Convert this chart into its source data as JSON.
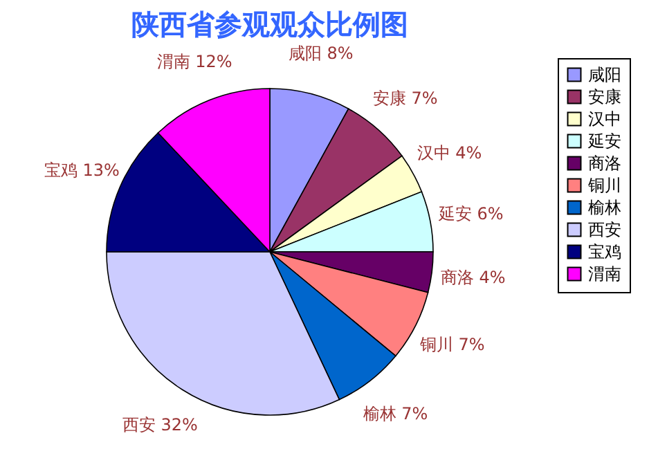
{
  "chart_data": {
    "type": "pie",
    "title": "陕西省参观观众比例图",
    "categories": [
      "咸阳",
      "安康",
      "汉中",
      "延安",
      "商洛",
      "铜川",
      "榆林",
      "西安",
      "宝鸡",
      "渭南"
    ],
    "values": [
      8,
      7,
      4,
      6,
      4,
      7,
      7,
      32,
      13,
      12
    ],
    "value_labels": [
      "8%",
      "7%",
      "4%",
      "6%",
      "4%",
      "7%",
      "7%",
      "32%",
      "13%",
      "12%"
    ],
    "colors": [
      "#9999ff",
      "#993366",
      "#ffffcc",
      "#ccffff",
      "#660066",
      "#ff8080",
      "#0066cc",
      "#ccccff",
      "#000080",
      "#ff00ff"
    ],
    "legend": "right"
  }
}
